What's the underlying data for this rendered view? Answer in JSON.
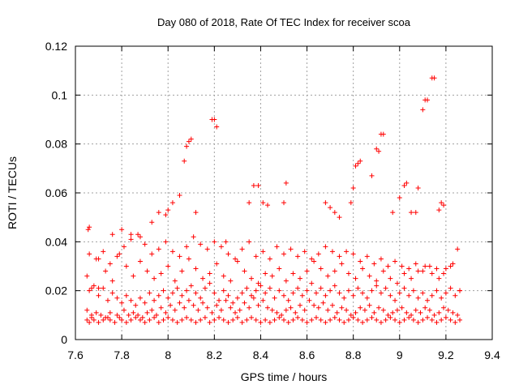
{
  "chart_data": {
    "type": "scatter",
    "title": "Day 080 of 2018, Rate Of TEC Index for receiver scoa",
    "xlabel": "GPS time / hours",
    "ylabel": "ROTI / TECUs",
    "xlim": [
      7.6,
      9.4
    ],
    "ylim": [
      0,
      0.12
    ],
    "xticks": [
      7.6,
      7.8,
      8.0,
      8.2,
      8.4,
      8.6,
      8.8,
      9.0,
      9.2,
      9.4
    ],
    "xtick_labels": [
      "7.6",
      "7.8",
      "8",
      "8.2",
      "8.4",
      "8.6",
      "8.8",
      "9",
      "9.2",
      "9.4"
    ],
    "yticks": [
      0,
      0.02,
      0.04,
      0.06,
      0.08,
      0.1,
      0.12
    ],
    "ytick_labels": [
      "0",
      "0.02",
      "0.04",
      "0.06",
      "0.08",
      "0.1",
      "0.12"
    ],
    "grid": true,
    "marker": "+",
    "color": "#ff0000",
    "series": [
      {
        "name": "scoa",
        "x": [
          7.65,
          7.66,
          7.67,
          7.68,
          7.7,
          7.72,
          7.74,
          7.75,
          7.77,
          7.79,
          7.8,
          7.82,
          7.84,
          7.86,
          7.88,
          7.9,
          7.92,
          7.94,
          7.96,
          7.98,
          8.0,
          8.02,
          8.04,
          8.06,
          8.08,
          8.1,
          8.12,
          8.14,
          8.16,
          8.18,
          8.2,
          8.22,
          8.24,
          8.26,
          8.28,
          8.3,
          8.32,
          8.34,
          8.36,
          8.38,
          8.4,
          8.42,
          8.44,
          8.46,
          8.48,
          8.5,
          8.52,
          8.54,
          8.56,
          8.58,
          8.6,
          8.62,
          8.64,
          8.66,
          8.68,
          8.7,
          8.72,
          8.74,
          8.76,
          8.78,
          8.8,
          8.82,
          8.84,
          8.86,
          8.88,
          8.9,
          8.92,
          8.94,
          8.96,
          8.98,
          9.0,
          9.02,
          9.04,
          9.06,
          9.08,
          9.1,
          9.12,
          9.14,
          9.16,
          9.18,
          9.2,
          9.22,
          9.24,
          9.26,
          7.65,
          7.67,
          7.69,
          7.71,
          7.73,
          7.75,
          7.78,
          7.81,
          7.83,
          7.85,
          7.87,
          7.89,
          7.91,
          7.93,
          7.95,
          7.97,
          7.99,
          8.01,
          8.03,
          8.05,
          8.07,
          8.09,
          8.11,
          8.13,
          8.15,
          8.17,
          8.19,
          8.21,
          8.23,
          8.25,
          8.27,
          8.29,
          8.31,
          8.33,
          8.35,
          8.37,
          8.39,
          8.41,
          8.43,
          8.45,
          8.47,
          8.49,
          8.51,
          8.53,
          8.55,
          8.57,
          8.59,
          8.61,
          8.63,
          8.65,
          8.67,
          8.69,
          8.71,
          8.73,
          8.75,
          8.77,
          8.79,
          8.81,
          8.83,
          8.85,
          8.87,
          8.89,
          8.91,
          8.93,
          8.95,
          8.97,
          8.99,
          9.01,
          9.03,
          9.05,
          9.07,
          9.09,
          9.11,
          9.13,
          9.15,
          9.17,
          9.19,
          9.21,
          9.23,
          9.25,
          7.66,
          7.68,
          7.7,
          7.72,
          7.74,
          7.76,
          7.78,
          7.8,
          7.82,
          7.84,
          7.86,
          7.88,
          7.9,
          7.92,
          7.94,
          7.96,
          7.98,
          8.0,
          8.02,
          8.04,
          8.06,
          8.08,
          8.1,
          8.12,
          8.14,
          8.16,
          8.18,
          8.2,
          8.22,
          8.24,
          8.26,
          8.28,
          8.3,
          8.32,
          8.34,
          8.36,
          8.38,
          8.4,
          8.42,
          8.44,
          8.46,
          8.48,
          8.5,
          8.52,
          8.54,
          8.56,
          8.58,
          8.6,
          8.62,
          8.64,
          8.66,
          8.68,
          8.7,
          8.72,
          8.74,
          8.76,
          8.78,
          8.8,
          8.82,
          8.84,
          8.86,
          8.88,
          8.9,
          8.92,
          8.94,
          8.96,
          8.98,
          9.0,
          9.02,
          9.04,
          9.06,
          9.08,
          9.1,
          9.12,
          9.14,
          9.16,
          9.18,
          9.2,
          9.22,
          9.24,
          9.26,
          7.65,
          7.67,
          7.7,
          7.73,
          7.76,
          7.79,
          7.82,
          7.85,
          7.88,
          7.91,
          7.94,
          7.97,
          8.0,
          8.03,
          8.06,
          8.09,
          8.12,
          8.15,
          8.18,
          8.21,
          8.24,
          8.27,
          8.3,
          8.33,
          8.36,
          8.39,
          8.42,
          8.45,
          8.48,
          8.51,
          8.54,
          8.57,
          8.6,
          8.63,
          8.66,
          8.69,
          8.72,
          8.75,
          8.78,
          8.81,
          8.84,
          8.87,
          8.9,
          8.93,
          8.96,
          8.99,
          9.02,
          9.05,
          9.08,
          9.11,
          9.14,
          9.17,
          9.2,
          9.23,
          9.26,
          7.66,
          7.69,
          7.72,
          7.75,
          7.78,
          7.81,
          7.84,
          7.87,
          7.9,
          7.93,
          7.96,
          7.99,
          8.02,
          8.05,
          8.08,
          8.11,
          8.14,
          8.17,
          8.2,
          8.23,
          8.26,
          8.29,
          8.32,
          8.35,
          8.38,
          8.41,
          8.44,
          8.47,
          8.5,
          8.53,
          8.56,
          8.59,
          8.62,
          8.65,
          8.68,
          8.71,
          8.74,
          8.77,
          8.8,
          8.83,
          8.86,
          8.89,
          8.92,
          8.95,
          8.98,
          9.01,
          9.04,
          9.07,
          9.1,
          9.13,
          9.16,
          9.19,
          9.22,
          9.25,
          7.655,
          7.66,
          7.7,
          7.76,
          7.8,
          7.84,
          7.88,
          7.93,
          7.96,
          7.99,
          8.0,
          8.02,
          8.05,
          8.07,
          8.08,
          8.09,
          8.1,
          8.12,
          8.19,
          8.2,
          8.21,
          8.25,
          8.35,
          8.37,
          8.39,
          8.41,
          8.43,
          8.5,
          8.51,
          8.68,
          8.7,
          8.72,
          8.74,
          8.79,
          8.8,
          8.81,
          8.82,
          8.83,
          8.88,
          8.9,
          8.91,
          8.92,
          8.93,
          8.97,
          9.0,
          9.02,
          9.03,
          9.05,
          9.07,
          9.08,
          9.1,
          9.11,
          9.12,
          9.14,
          9.15,
          9.17,
          9.18,
          9.19
        ],
        "y": [
          0.008,
          0.007,
          0.009,
          0.008,
          0.007,
          0.008,
          0.009,
          0.008,
          0.007,
          0.009,
          0.008,
          0.007,
          0.008,
          0.009,
          0.008,
          0.007,
          0.008,
          0.009,
          0.007,
          0.008,
          0.009,
          0.008,
          0.007,
          0.008,
          0.009,
          0.008,
          0.007,
          0.008,
          0.009,
          0.007,
          0.008,
          0.009,
          0.008,
          0.007,
          0.008,
          0.009,
          0.007,
          0.008,
          0.009,
          0.008,
          0.007,
          0.008,
          0.007,
          0.008,
          0.009,
          0.008,
          0.007,
          0.008,
          0.009,
          0.008,
          0.007,
          0.008,
          0.009,
          0.008,
          0.007,
          0.008,
          0.009,
          0.008,
          0.007,
          0.008,
          0.009,
          0.008,
          0.007,
          0.008,
          0.009,
          0.008,
          0.007,
          0.008,
          0.009,
          0.008,
          0.007,
          0.008,
          0.009,
          0.008,
          0.007,
          0.008,
          0.009,
          0.008,
          0.007,
          0.008,
          0.009,
          0.008,
          0.007,
          0.008,
          0.012,
          0.01,
          0.011,
          0.01,
          0.009,
          0.011,
          0.01,
          0.012,
          0.01,
          0.011,
          0.01,
          0.009,
          0.011,
          0.012,
          0.01,
          0.013,
          0.011,
          0.014,
          0.012,
          0.015,
          0.013,
          0.016,
          0.014,
          0.012,
          0.015,
          0.013,
          0.011,
          0.014,
          0.012,
          0.016,
          0.013,
          0.011,
          0.012,
          0.015,
          0.013,
          0.017,
          0.014,
          0.016,
          0.013,
          0.012,
          0.011,
          0.01,
          0.012,
          0.013,
          0.011,
          0.014,
          0.012,
          0.016,
          0.014,
          0.013,
          0.015,
          0.012,
          0.014,
          0.011,
          0.013,
          0.012,
          0.01,
          0.011,
          0.013,
          0.012,
          0.014,
          0.011,
          0.013,
          0.012,
          0.01,
          0.011,
          0.012,
          0.013,
          0.011,
          0.01,
          0.012,
          0.011,
          0.013,
          0.012,
          0.01,
          0.011,
          0.013,
          0.012,
          0.011,
          0.01,
          0.02,
          0.022,
          0.018,
          0.021,
          0.016,
          0.019,
          0.017,
          0.015,
          0.018,
          0.016,
          0.014,
          0.017,
          0.015,
          0.019,
          0.016,
          0.018,
          0.02,
          0.017,
          0.019,
          0.021,
          0.018,
          0.02,
          0.022,
          0.019,
          0.017,
          0.021,
          0.023,
          0.019,
          0.016,
          0.02,
          0.018,
          0.015,
          0.017,
          0.019,
          0.021,
          0.018,
          0.02,
          0.022,
          0.019,
          0.021,
          0.017,
          0.02,
          0.018,
          0.016,
          0.019,
          0.021,
          0.018,
          0.02,
          0.023,
          0.019,
          0.021,
          0.018,
          0.02,
          0.022,
          0.019,
          0.017,
          0.02,
          0.018,
          0.021,
          0.019,
          0.017,
          0.02,
          0.022,
          0.019,
          0.021,
          0.018,
          0.016,
          0.019,
          0.021,
          0.018,
          0.02,
          0.017,
          0.019,
          0.016,
          0.018,
          0.02,
          0.017,
          0.019,
          0.021,
          0.018,
          0.02,
          0.026,
          0.021,
          0.033,
          0.028,
          0.024,
          0.035,
          0.03,
          0.026,
          0.032,
          0.028,
          0.025,
          0.027,
          0.03,
          0.024,
          0.028,
          0.033,
          0.029,
          0.025,
          0.027,
          0.031,
          0.026,
          0.024,
          0.032,
          0.028,
          0.025,
          0.023,
          0.027,
          0.026,
          0.029,
          0.024,
          0.027,
          0.025,
          0.028,
          0.032,
          0.029,
          0.026,
          0.028,
          0.031,
          0.027,
          0.025,
          0.029,
          0.026,
          0.024,
          0.028,
          0.025,
          0.023,
          0.027,
          0.025,
          0.028,
          0.03,
          0.027,
          0.025,
          0.029,
          0.031,
          0.02,
          0.035,
          0.033,
          0.036,
          0.031,
          0.034,
          0.038,
          0.041,
          0.043,
          0.039,
          0.035,
          0.037,
          0.04,
          0.036,
          0.034,
          0.038,
          0.042,
          0.039,
          0.037,
          0.04,
          0.038,
          0.035,
          0.033,
          0.037,
          0.04,
          0.034,
          0.036,
          0.033,
          0.038,
          0.035,
          0.037,
          0.034,
          0.036,
          0.033,
          0.035,
          0.038,
          0.036,
          0.034,
          0.036,
          0.035,
          0.032,
          0.034,
          0.031,
          0.033,
          0.03,
          0.032,
          0.03,
          0.029,
          0.031,
          0.028,
          0.03,
          0.029,
          0.027,
          0.03,
          0.037,
          0.045,
          0.046,
          0.021,
          0.043,
          0.045,
          0.043,
          0.042,
          0.048,
          0.052,
          0.051,
          0.053,
          0.056,
          0.059,
          0.073,
          0.079,
          0.081,
          0.082,
          0.052,
          0.09,
          0.09,
          0.087,
          0.04,
          0.056,
          0.063,
          0.063,
          0.056,
          0.055,
          0.056,
          0.064,
          0.056,
          0.054,
          0.052,
          0.05,
          0.056,
          0.062,
          0.071,
          0.072,
          0.073,
          0.067,
          0.078,
          0.077,
          0.084,
          0.084,
          0.052,
          0.058,
          0.063,
          0.064,
          0.052,
          0.052,
          0.062,
          0.094,
          0.098,
          0.098,
          0.107,
          0.107,
          0.053,
          0.056,
          0.055
        ]
      }
    ]
  }
}
